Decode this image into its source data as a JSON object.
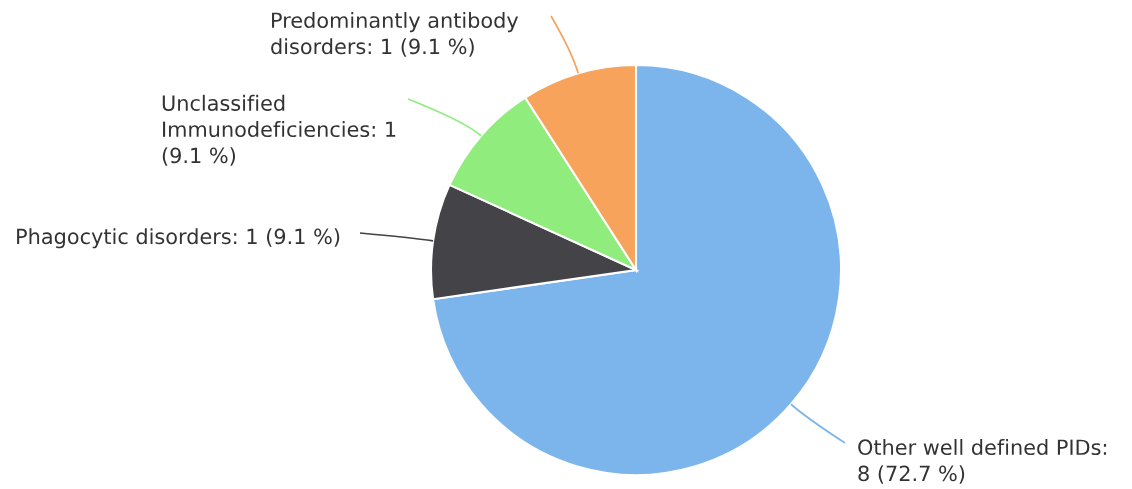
{
  "chart_data": {
    "type": "pie",
    "categories": [
      "Other well defined PIDs",
      "Phagocytic disorders",
      "Unclassified Immunodeficiencies",
      "Predominantly antibody disorders"
    ],
    "values": [
      8,
      1,
      1,
      1
    ],
    "value_labels": [
      ": 8 (72.7 %)",
      ": 1 (9.1 %)",
      ": 1 (9.1 %)",
      ": 1 (9.1 %)"
    ],
    "colors": [
      "#7cb5ec",
      "#434348",
      "#90ed7d",
      "#f7a35c"
    ],
    "legend": false
  }
}
